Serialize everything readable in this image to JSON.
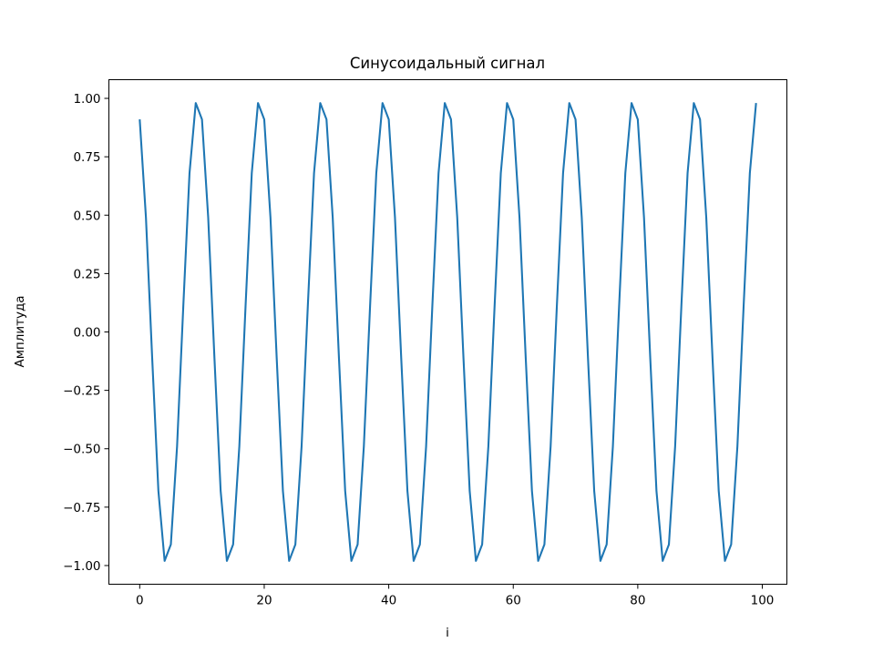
{
  "chart_data": {
    "type": "line",
    "title": "Синусоидальный сигнал",
    "xlabel": "i",
    "ylabel": "Амплитуда",
    "xlim": [
      -4.95,
      103.95
    ],
    "ylim": [
      -1.08,
      1.08
    ],
    "xticks": [
      0,
      20,
      40,
      60,
      80,
      100
    ],
    "xtick_labels": [
      "0",
      "20",
      "40",
      "60",
      "80",
      "100"
    ],
    "yticks": [
      -1.0,
      -0.75,
      -0.5,
      -0.25,
      0.0,
      0.25,
      0.5,
      0.75,
      1.0
    ],
    "ytick_labels": [
      "−1.00",
      "−0.75",
      "−0.50",
      "−0.25",
      "0.00",
      "0.25",
      "0.50",
      "0.75",
      "1.00"
    ],
    "grid": false,
    "series": [
      {
        "color": "#1f77b4",
        "x_start": 0,
        "x_step": 1,
        "values": [
          0.91,
          0.49,
          -0.11,
          -0.68,
          -0.98,
          -0.91,
          -0.49,
          0.11,
          0.68,
          0.98,
          0.91,
          0.49,
          -0.11,
          -0.68,
          -0.98,
          -0.91,
          -0.49,
          0.11,
          0.68,
          0.98,
          0.91,
          0.49,
          -0.11,
          -0.68,
          -0.98,
          -0.91,
          -0.49,
          0.11,
          0.68,
          0.98,
          0.91,
          0.49,
          -0.11,
          -0.68,
          -0.98,
          -0.91,
          -0.49,
          0.11,
          0.68,
          0.98,
          0.91,
          0.49,
          -0.11,
          -0.68,
          -0.98,
          -0.91,
          -0.49,
          0.11,
          0.68,
          0.98,
          0.91,
          0.49,
          -0.11,
          -0.68,
          -0.98,
          -0.91,
          -0.49,
          0.11,
          0.68,
          0.98,
          0.91,
          0.49,
          -0.11,
          -0.68,
          -0.98,
          -0.91,
          -0.49,
          0.11,
          0.68,
          0.98,
          0.91,
          0.49,
          -0.11,
          -0.68,
          -0.98,
          -0.91,
          -0.49,
          0.11,
          0.68,
          0.98,
          0.91,
          0.49,
          -0.11,
          -0.68,
          -0.98,
          -0.91,
          -0.49,
          0.11,
          0.68,
          0.98,
          0.91,
          0.49,
          -0.11,
          -0.68,
          -0.98,
          -0.91,
          -0.49,
          0.11,
          0.68,
          0.98
        ]
      }
    ]
  }
}
